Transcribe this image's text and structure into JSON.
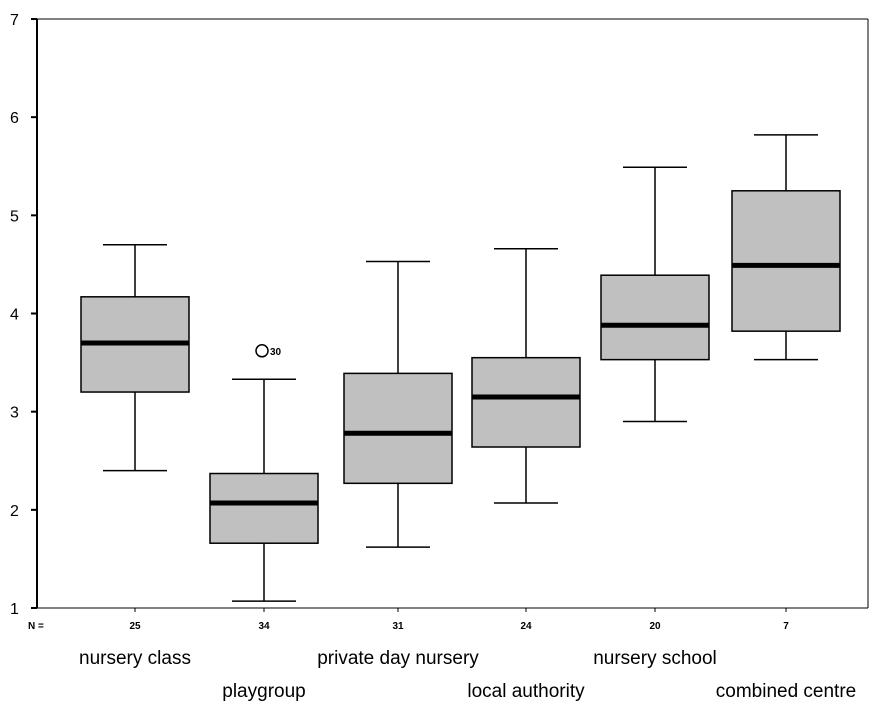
{
  "chart_data": {
    "type": "boxplot",
    "ylim": [
      1,
      7
    ],
    "yticks": [
      1,
      2,
      3,
      4,
      5,
      6,
      7
    ],
    "n_label": "N =",
    "grid": false,
    "legend": "none",
    "colors": {
      "box_fill": "#c0c0c0",
      "stroke": "#000000",
      "background": "#ffffff"
    },
    "categories": [
      "nursery class",
      "playgroup",
      "private day nursery",
      "local authority",
      "nursery school",
      "combined centre"
    ],
    "n": [
      "25",
      "34",
      "31",
      "24",
      "20",
      "7"
    ],
    "boxes": [
      {
        "whisker_low": 2.4,
        "q1": 3.2,
        "median": 3.7,
        "q3": 4.17,
        "whisker_high": 4.7
      },
      {
        "whisker_low": 1.07,
        "q1": 1.66,
        "median": 2.07,
        "q3": 2.37,
        "whisker_high": 3.33,
        "outliers": [
          {
            "value": 3.62,
            "label": "30"
          }
        ]
      },
      {
        "whisker_low": 1.62,
        "q1": 2.27,
        "median": 2.78,
        "q3": 3.39,
        "whisker_high": 4.53
      },
      {
        "whisker_low": 2.07,
        "q1": 2.64,
        "median": 3.15,
        "q3": 3.55,
        "whisker_high": 4.66
      },
      {
        "whisker_low": 2.9,
        "q1": 3.53,
        "median": 3.88,
        "q3": 4.39,
        "whisker_high": 5.49
      },
      {
        "whisker_low": 3.53,
        "q1": 3.82,
        "median": 4.49,
        "q3": 5.25,
        "whisker_high": 5.82
      }
    ]
  }
}
